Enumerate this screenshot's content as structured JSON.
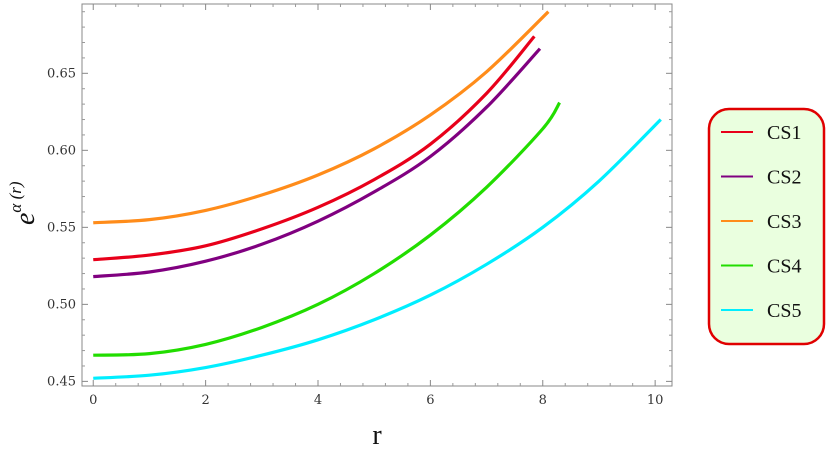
{
  "chart_data": {
    "type": "line",
    "xlabel": "r",
    "ylabel": {
      "base": "e",
      "exponent": "α (r)"
    },
    "xlim": [
      -0.2,
      10.3
    ],
    "ylim": [
      0.447,
      0.695
    ],
    "x_ticks": [
      0,
      2,
      4,
      6,
      8,
      10
    ],
    "y_ticks": [
      0.45,
      0.5,
      0.55,
      0.6,
      0.65
    ],
    "x_tick_labels": [
      "0",
      "2",
      "4",
      "6",
      "8",
      "10"
    ],
    "y_tick_labels": [
      "0.45",
      "0.50",
      "0.55",
      "0.60",
      "0.65"
    ],
    "grid": false,
    "legend_position": "right",
    "legend_style": {
      "background": "#eaffdf",
      "border": "#e00000"
    },
    "series": [
      {
        "name": "CS1",
        "color": "#e8001a",
        "x": [
          0,
          1,
          2,
          3,
          4,
          5,
          6,
          7,
          7.85
        ],
        "y": [
          0.529,
          0.532,
          0.538,
          0.549,
          0.563,
          0.581,
          0.604,
          0.637,
          0.674
        ]
      },
      {
        "name": "CS2",
        "color": "#800080",
        "x": [
          0,
          1,
          2,
          3,
          4,
          5,
          6,
          7,
          7.95
        ],
        "y": [
          0.518,
          0.521,
          0.528,
          0.539,
          0.554,
          0.573,
          0.596,
          0.628,
          0.666
        ]
      },
      {
        "name": "CS3",
        "color": "#ff8c1a",
        "x": [
          0,
          1,
          2,
          3,
          4,
          5,
          6,
          7,
          8.1
        ],
        "y": [
          0.553,
          0.555,
          0.561,
          0.571,
          0.584,
          0.601,
          0.623,
          0.651,
          0.69
        ]
      },
      {
        "name": "CS4",
        "color": "#22dd00",
        "x": [
          0,
          1,
          2,
          3,
          4,
          5,
          6,
          7,
          8,
          8.3
        ],
        "y": [
          0.467,
          0.468,
          0.474,
          0.485,
          0.5,
          0.52,
          0.545,
          0.576,
          0.614,
          0.631
        ]
      },
      {
        "name": "CS5",
        "color": "#00eeff",
        "x": [
          0,
          1,
          2,
          3,
          4,
          5,
          6,
          7,
          8,
          9,
          10.1
        ],
        "y": [
          0.452,
          0.454,
          0.459,
          0.467,
          0.477,
          0.49,
          0.506,
          0.526,
          0.55,
          0.58,
          0.62
        ]
      }
    ]
  }
}
